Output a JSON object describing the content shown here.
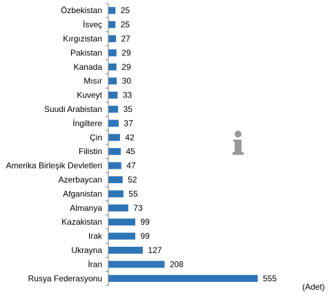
{
  "chart_data": {
    "type": "bar",
    "orientation": "horizontal",
    "categories": [
      "Özbekistan",
      "İsveç",
      "Kırgızistan",
      "Pakistan",
      "Kanada",
      "Mısır",
      "Kuveyt",
      "Suudi Arabistan",
      "İngiltere",
      "Çin",
      "Filistin",
      "Amerika Birleşik Devletleri",
      "Azerbaycan",
      "Afganistan",
      "Almanya",
      "Kazakistan",
      "Irak",
      "Ukrayna",
      "İran",
      "Rusya Federasyonu"
    ],
    "values": [
      25,
      25,
      27,
      29,
      29,
      30,
      33,
      35,
      37,
      42,
      45,
      47,
      52,
      55,
      73,
      99,
      99,
      127,
      208,
      555
    ],
    "unit_label": "(Adet)",
    "xlim": [
      0,
      555
    ],
    "bar_color": "#2E75B6",
    "grid": false,
    "legend": "none"
  },
  "overlay": {
    "icon": "info-icon",
    "color": "#9a9a9a"
  }
}
